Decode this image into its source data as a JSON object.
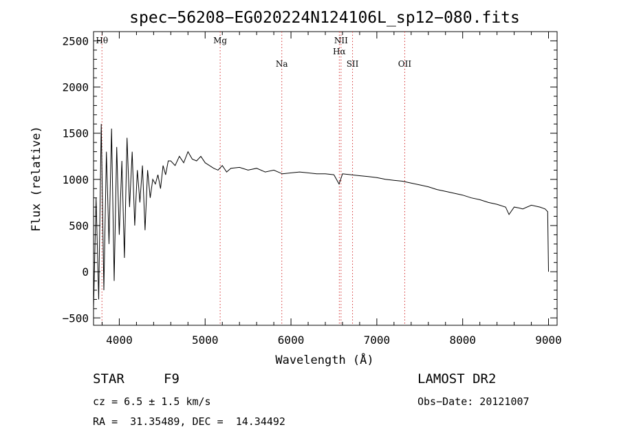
{
  "chart_data": {
    "type": "line",
    "title": "spec−56208−EG020224N124106L_sp12−080.fits",
    "xlabel": "Wavelength (Å)",
    "ylabel": "Flux (relative)",
    "xlim": [
      3700,
      9100
    ],
    "ylim": [
      -580,
      2600
    ],
    "xticks": [
      4000,
      5000,
      6000,
      7000,
      8000,
      9000
    ],
    "yticks": [
      -500,
      0,
      500,
      1000,
      1500,
      2000,
      2500
    ],
    "x_tick_labels": [
      "4000",
      "5000",
      "6000",
      "7000",
      "8000",
      "9000"
    ],
    "y_tick_labels": [
      "−500",
      "0",
      "500",
      "1000",
      "1500",
      "2000",
      "2500"
    ],
    "grid": false,
    "line_color": "#000000",
    "marker_color": "#d43030",
    "spectral_lines": [
      {
        "label": "Hθ",
        "wavelength": 3798,
        "label_row": "top"
      },
      {
        "label": "Mg",
        "wavelength": 5175,
        "label_row": "top"
      },
      {
        "label": "Na",
        "wavelength": 5893,
        "label_row": "low"
      },
      {
        "label": "NII",
        "wavelength": 6583,
        "label_row": "top"
      },
      {
        "label": "Hα",
        "wavelength": 6563,
        "label_row": "mid"
      },
      {
        "label": "SII",
        "wavelength": 6717,
        "label_row": "low"
      },
      {
        "label": "OII",
        "wavelength": 7325,
        "label_row": "low"
      }
    ],
    "series": [
      {
        "x": [
          3700,
          3730,
          3760,
          3790,
          3820,
          3850,
          3880,
          3910,
          3940,
          3970,
          4000,
          4030,
          4060,
          4090,
          4120,
          4150,
          4180,
          4210,
          4240,
          4270,
          4300,
          4330,
          4360,
          4390,
          4420,
          4450,
          4480,
          4510,
          4540,
          4570,
          4600,
          4650,
          4700,
          4750,
          4800,
          4850,
          4900,
          4950,
          5000,
          5050,
          5100,
          5150,
          5200,
          5250,
          5300,
          5400,
          5500,
          5600,
          5700,
          5800,
          5900,
          6000,
          6100,
          6200,
          6300,
          6400,
          6500,
          6560,
          6600,
          6700,
          6800,
          6900,
          7000,
          7100,
          7200,
          7300,
          7400,
          7500,
          7600,
          7700,
          7800,
          7900,
          8000,
          8100,
          8200,
          8300,
          8400,
          8500,
          8540,
          8600,
          8660,
          8700,
          8800,
          8900,
          8960,
          8990,
          9000
        ],
        "y": [
          -400,
          800,
          -300,
          1600,
          -200,
          1300,
          300,
          1550,
          -100,
          1350,
          400,
          1200,
          150,
          1450,
          700,
          1300,
          500,
          1100,
          750,
          1150,
          450,
          1100,
          800,
          1000,
          950,
          1050,
          900,
          1150,
          1050,
          1200,
          1200,
          1150,
          1250,
          1180,
          1300,
          1220,
          1200,
          1250,
          1180,
          1150,
          1120,
          1100,
          1150,
          1080,
          1120,
          1130,
          1100,
          1120,
          1080,
          1100,
          1060,
          1070,
          1080,
          1070,
          1060,
          1060,
          1050,
          950,
          1060,
          1050,
          1040,
          1030,
          1020,
          1000,
          990,
          980,
          960,
          940,
          920,
          890,
          870,
          850,
          830,
          800,
          780,
          750,
          730,
          700,
          620,
          700,
          690,
          680,
          720,
          700,
          680,
          650,
          0
        ]
      }
    ],
    "info": {
      "object_class": "STAR",
      "subclass": "F9",
      "survey": "LAMOST DR2",
      "cz": "cz = 6.5 ± 1.5 km/s",
      "obs_date": "Obs−Date: 20121007",
      "coords": "RA =  31.35489, DEC =  14.34492"
    }
  }
}
